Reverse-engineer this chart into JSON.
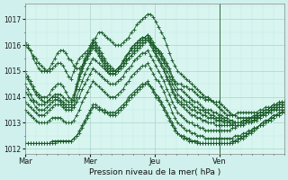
{
  "xlabel": "Pression niveau de la mer( hPa )",
  "bg_color": "#cff0ec",
  "plot_bg": "#d8f5f0",
  "grid_color_major": "#aad4cc",
  "grid_color_minor": "#c0e8e2",
  "line_color": "#1a5c28",
  "ylim": [
    1011.8,
    1017.6
  ],
  "xlim": [
    0,
    96
  ],
  "yticks": [
    1012,
    1013,
    1014,
    1015,
    1016,
    1017
  ],
  "xtick_positions": [
    0,
    24,
    48,
    72
  ],
  "xtick_labels": [
    "Mar",
    "Mer",
    "Jeu",
    "Ven"
  ],
  "vline_x": 72,
  "n_points": 96,
  "series": [
    [
      1016.0,
      1015.9,
      1015.8,
      1015.6,
      1015.5,
      1015.3,
      1015.2,
      1015.1,
      1015.0,
      1015.0,
      1015.1,
      1015.2,
      1015.3,
      1015.3,
      1015.2,
      1015.0,
      1014.8,
      1014.7,
      1015.0,
      1015.3,
      1015.5,
      1015.6,
      1015.7,
      1015.8,
      1016.0,
      1016.2,
      1016.1,
      1015.9,
      1015.7,
      1015.5,
      1015.3,
      1015.2,
      1015.1,
      1015.0,
      1015.0,
      1015.1,
      1015.2,
      1015.3,
      1015.5,
      1015.6,
      1015.7,
      1015.8,
      1015.9,
      1016.0,
      1016.1,
      1016.2,
      1016.1,
      1016.0,
      1015.9,
      1015.8,
      1015.7,
      1015.5,
      1015.3,
      1015.1,
      1014.8,
      1014.6,
      1014.5,
      1014.5,
      1014.4,
      1014.4,
      1014.3,
      1014.3,
      1014.2,
      1014.1,
      1014.0,
      1014.0,
      1013.9,
      1013.9,
      1013.9,
      1013.8,
      1013.8,
      1013.8,
      1013.7,
      1013.6,
      1013.5,
      1013.4,
      1013.3,
      1013.3,
      1013.2,
      1013.2,
      1013.2,
      1013.2,
      1013.2,
      1013.2,
      1013.2,
      1013.2,
      1013.3,
      1013.3,
      1013.3,
      1013.4,
      1013.4,
      1013.5,
      1013.5,
      1013.5,
      1013.5,
      1013.5
    ],
    [
      1015.0,
      1014.8,
      1014.6,
      1014.4,
      1014.2,
      1014.1,
      1014.0,
      1014.0,
      1014.0,
      1014.1,
      1014.3,
      1014.4,
      1014.5,
      1014.5,
      1014.4,
      1014.2,
      1014.0,
      1013.9,
      1014.1,
      1014.5,
      1014.9,
      1015.2,
      1015.5,
      1015.7,
      1015.9,
      1016.1,
      1016.0,
      1015.8,
      1015.6,
      1015.4,
      1015.2,
      1015.1,
      1015.0,
      1015.0,
      1015.1,
      1015.2,
      1015.4,
      1015.5,
      1015.7,
      1015.9,
      1016.0,
      1016.1,
      1016.2,
      1016.3,
      1016.3,
      1016.4,
      1016.3,
      1016.1,
      1015.9,
      1015.8,
      1015.6,
      1015.4,
      1015.2,
      1015.0,
      1014.7,
      1014.5,
      1014.3,
      1014.3,
      1014.2,
      1014.1,
      1014.0,
      1013.9,
      1013.8,
      1013.8,
      1013.7,
      1013.6,
      1013.5,
      1013.5,
      1013.5,
      1013.4,
      1013.4,
      1013.3,
      1013.3,
      1013.2,
      1013.2,
      1013.1,
      1013.1,
      1013.0,
      1013.0,
      1013.0,
      1013.1,
      1013.1,
      1013.1,
      1013.2,
      1013.2,
      1013.2,
      1013.3,
      1013.3,
      1013.4,
      1013.4,
      1013.5,
      1013.5,
      1013.5,
      1013.6,
      1013.6,
      1013.6
    ],
    [
      1014.8,
      1014.7,
      1014.5,
      1014.3,
      1014.1,
      1014.0,
      1013.9,
      1013.8,
      1013.8,
      1013.9,
      1014.0,
      1014.1,
      1014.1,
      1014.1,
      1014.0,
      1013.9,
      1013.8,
      1013.8,
      1014.0,
      1014.4,
      1014.8,
      1015.1,
      1015.4,
      1015.6,
      1015.8,
      1016.0,
      1015.9,
      1015.7,
      1015.5,
      1015.3,
      1015.1,
      1015.0,
      1015.0,
      1015.0,
      1015.1,
      1015.2,
      1015.4,
      1015.6,
      1015.7,
      1015.9,
      1016.0,
      1016.1,
      1016.2,
      1016.3,
      1016.3,
      1016.4,
      1016.2,
      1016.0,
      1015.8,
      1015.7,
      1015.5,
      1015.3,
      1015.0,
      1014.8,
      1014.5,
      1014.3,
      1014.1,
      1014.0,
      1013.9,
      1013.8,
      1013.8,
      1013.7,
      1013.6,
      1013.6,
      1013.5,
      1013.5,
      1013.4,
      1013.4,
      1013.3,
      1013.3,
      1013.2,
      1013.2,
      1013.2,
      1013.1,
      1013.1,
      1013.0,
      1013.0,
      1013.0,
      1013.0,
      1013.0,
      1013.0,
      1013.0,
      1013.0,
      1013.1,
      1013.1,
      1013.2,
      1013.2,
      1013.3,
      1013.4,
      1013.4,
      1013.5,
      1013.5,
      1013.6,
      1013.6,
      1013.6,
      1013.7
    ],
    [
      1014.5,
      1014.3,
      1014.1,
      1013.9,
      1013.8,
      1013.7,
      1013.7,
      1013.7,
      1013.8,
      1013.9,
      1014.0,
      1014.0,
      1014.0,
      1013.9,
      1013.8,
      1013.7,
      1013.7,
      1013.7,
      1013.9,
      1014.3,
      1014.7,
      1015.0,
      1015.3,
      1015.5,
      1015.7,
      1015.9,
      1015.8,
      1015.6,
      1015.4,
      1015.2,
      1015.0,
      1014.9,
      1014.9,
      1014.9,
      1015.0,
      1015.2,
      1015.3,
      1015.5,
      1015.7,
      1015.8,
      1015.9,
      1016.0,
      1016.1,
      1016.2,
      1016.2,
      1016.3,
      1016.1,
      1015.9,
      1015.7,
      1015.5,
      1015.3,
      1015.1,
      1014.8,
      1014.6,
      1014.3,
      1014.1,
      1013.9,
      1013.8,
      1013.7,
      1013.7,
      1013.6,
      1013.5,
      1013.5,
      1013.4,
      1013.4,
      1013.3,
      1013.3,
      1013.2,
      1013.2,
      1013.2,
      1013.1,
      1013.1,
      1013.1,
      1013.0,
      1013.0,
      1013.0,
      1012.9,
      1012.9,
      1012.9,
      1012.9,
      1012.9,
      1013.0,
      1013.0,
      1013.0,
      1013.1,
      1013.1,
      1013.2,
      1013.3,
      1013.4,
      1013.4,
      1013.5,
      1013.6,
      1013.6,
      1013.7,
      1013.7,
      1013.7
    ],
    [
      1016.1,
      1016.0,
      1015.8,
      1015.5,
      1015.3,
      1015.1,
      1015.0,
      1015.0,
      1015.0,
      1015.1,
      1015.3,
      1015.5,
      1015.7,
      1015.8,
      1015.8,
      1015.7,
      1015.5,
      1015.4,
      1015.2,
      1015.1,
      1015.1,
      1015.2,
      1015.4,
      1015.6,
      1015.8,
      1016.1,
      1016.3,
      1016.5,
      1016.5,
      1016.4,
      1016.3,
      1016.2,
      1016.1,
      1016.0,
      1016.0,
      1016.0,
      1016.1,
      1016.2,
      1016.3,
      1016.5,
      1016.6,
      1016.8,
      1016.9,
      1017.0,
      1017.1,
      1017.2,
      1017.2,
      1017.1,
      1016.9,
      1016.7,
      1016.5,
      1016.3,
      1016.0,
      1015.7,
      1015.4,
      1015.2,
      1015.0,
      1014.9,
      1014.8,
      1014.7,
      1014.6,
      1014.5,
      1014.4,
      1014.3,
      1014.2,
      1014.1,
      1014.0,
      1014.0,
      1013.9,
      1013.8,
      1013.7,
      1013.6,
      1013.5,
      1013.4,
      1013.3,
      1013.3,
      1013.3,
      1013.3,
      1013.4,
      1013.4,
      1013.4,
      1013.4,
      1013.4,
      1013.4,
      1013.4,
      1013.4,
      1013.5,
      1013.5,
      1013.6,
      1013.6,
      1013.6,
      1013.7,
      1013.7,
      1013.7,
      1013.8,
      1013.8
    ],
    [
      1013.5,
      1013.4,
      1013.3,
      1013.2,
      1013.1,
      1013.0,
      1013.0,
      1013.0,
      1013.0,
      1013.1,
      1013.2,
      1013.2,
      1013.2,
      1013.2,
      1013.1,
      1013.0,
      1013.0,
      1013.0,
      1013.1,
      1013.3,
      1013.5,
      1013.8,
      1014.0,
      1014.2,
      1014.4,
      1014.6,
      1014.5,
      1014.4,
      1014.3,
      1014.2,
      1014.1,
      1014.0,
      1014.0,
      1014.0,
      1014.1,
      1014.2,
      1014.3,
      1014.5,
      1014.6,
      1014.8,
      1014.9,
      1015.0,
      1015.1,
      1015.2,
      1015.2,
      1015.3,
      1015.1,
      1014.9,
      1014.7,
      1014.6,
      1014.4,
      1014.2,
      1013.9,
      1013.7,
      1013.4,
      1013.2,
      1013.0,
      1012.9,
      1012.8,
      1012.7,
      1012.7,
      1012.6,
      1012.6,
      1012.5,
      1012.5,
      1012.5,
      1012.4,
      1012.4,
      1012.4,
      1012.4,
      1012.4,
      1012.4,
      1012.4,
      1012.4,
      1012.4,
      1012.4,
      1012.4,
      1012.5,
      1012.5,
      1012.5,
      1012.6,
      1012.6,
      1012.7,
      1012.7,
      1012.8,
      1012.8,
      1012.9,
      1013.0,
      1013.1,
      1013.1,
      1013.2,
      1013.3,
      1013.3,
      1013.4,
      1013.4,
      1013.5
    ],
    [
      1012.2,
      1012.2,
      1012.2,
      1012.2,
      1012.2,
      1012.2,
      1012.2,
      1012.2,
      1012.2,
      1012.2,
      1012.3,
      1012.3,
      1012.3,
      1012.3,
      1012.3,
      1012.3,
      1012.3,
      1012.3,
      1012.4,
      1012.5,
      1012.7,
      1012.9,
      1013.1,
      1013.3,
      1013.5,
      1013.7,
      1013.7,
      1013.6,
      1013.5,
      1013.5,
      1013.4,
      1013.4,
      1013.4,
      1013.4,
      1013.5,
      1013.6,
      1013.7,
      1013.8,
      1014.0,
      1014.1,
      1014.2,
      1014.3,
      1014.4,
      1014.5,
      1014.5,
      1014.6,
      1014.4,
      1014.3,
      1014.1,
      1014.0,
      1013.8,
      1013.6,
      1013.4,
      1013.2,
      1013.0,
      1012.8,
      1012.6,
      1012.5,
      1012.5,
      1012.4,
      1012.4,
      1012.3,
      1012.3,
      1012.3,
      1012.2,
      1012.2,
      1012.2,
      1012.2,
      1012.2,
      1012.2,
      1012.2,
      1012.2,
      1012.2,
      1012.2,
      1012.2,
      1012.2,
      1012.3,
      1012.3,
      1012.4,
      1012.4,
      1012.5,
      1012.5,
      1012.6,
      1012.7,
      1012.8,
      1012.8,
      1012.9,
      1013.0,
      1013.0,
      1013.1,
      1013.2,
      1013.2,
      1013.3,
      1013.3,
      1013.4,
      1013.4
    ],
    [
      1012.2,
      1012.2,
      1012.2,
      1012.2,
      1012.2,
      1012.2,
      1012.2,
      1012.2,
      1012.2,
      1012.2,
      1012.2,
      1012.2,
      1012.3,
      1012.3,
      1012.3,
      1012.3,
      1012.3,
      1012.3,
      1012.4,
      1012.5,
      1012.6,
      1012.8,
      1013.0,
      1013.2,
      1013.4,
      1013.6,
      1013.6,
      1013.5,
      1013.5,
      1013.4,
      1013.4,
      1013.3,
      1013.3,
      1013.3,
      1013.4,
      1013.5,
      1013.6,
      1013.7,
      1013.9,
      1014.0,
      1014.1,
      1014.2,
      1014.3,
      1014.4,
      1014.5,
      1014.5,
      1014.4,
      1014.2,
      1014.0,
      1013.9,
      1013.7,
      1013.5,
      1013.3,
      1013.1,
      1012.9,
      1012.7,
      1012.6,
      1012.5,
      1012.4,
      1012.4,
      1012.3,
      1012.3,
      1012.3,
      1012.2,
      1012.2,
      1012.2,
      1012.2,
      1012.2,
      1012.2,
      1012.2,
      1012.2,
      1012.2,
      1012.2,
      1012.2,
      1012.2,
      1012.2,
      1012.2,
      1012.3,
      1012.3,
      1012.4,
      1012.4,
      1012.5,
      1012.6,
      1012.6,
      1012.7,
      1012.8,
      1012.9,
      1012.9,
      1013.0,
      1013.1,
      1013.1,
      1013.2,
      1013.3,
      1013.3,
      1013.4,
      1013.4
    ],
    [
      1013.8,
      1013.7,
      1013.6,
      1013.5,
      1013.4,
      1013.3,
      1013.3,
      1013.3,
      1013.4,
      1013.5,
      1013.6,
      1013.7,
      1013.7,
      1013.7,
      1013.6,
      1013.5,
      1013.5,
      1013.5,
      1013.6,
      1013.8,
      1014.0,
      1014.3,
      1014.5,
      1014.7,
      1014.9,
      1015.1,
      1015.0,
      1014.9,
      1014.8,
      1014.7,
      1014.6,
      1014.5,
      1014.5,
      1014.5,
      1014.6,
      1014.7,
      1014.8,
      1015.0,
      1015.1,
      1015.2,
      1015.4,
      1015.5,
      1015.6,
      1015.7,
      1015.7,
      1015.8,
      1015.6,
      1015.4,
      1015.2,
      1015.0,
      1014.8,
      1014.6,
      1014.3,
      1014.1,
      1013.8,
      1013.6,
      1013.4,
      1013.3,
      1013.2,
      1013.1,
      1013.0,
      1013.0,
      1012.9,
      1012.9,
      1012.8,
      1012.8,
      1012.7,
      1012.7,
      1012.7,
      1012.7,
      1012.7,
      1012.7,
      1012.7,
      1012.7,
      1012.7,
      1012.7,
      1012.8,
      1012.8,
      1012.9,
      1012.9,
      1013.0,
      1013.0,
      1013.1,
      1013.2,
      1013.2,
      1013.3,
      1013.4,
      1013.4,
      1013.5,
      1013.5,
      1013.6,
      1013.6,
      1013.7,
      1013.7,
      1013.7,
      1013.8
    ],
    [
      1014.2,
      1014.1,
      1013.9,
      1013.8,
      1013.6,
      1013.5,
      1013.5,
      1013.5,
      1013.6,
      1013.7,
      1013.8,
      1013.9,
      1013.9,
      1013.8,
      1013.7,
      1013.6,
      1013.6,
      1013.6,
      1013.7,
      1014.0,
      1014.3,
      1014.6,
      1014.9,
      1015.1,
      1015.3,
      1015.5,
      1015.4,
      1015.3,
      1015.2,
      1015.1,
      1015.0,
      1014.9,
      1014.9,
      1014.9,
      1015.0,
      1015.1,
      1015.2,
      1015.4,
      1015.5,
      1015.6,
      1015.8,
      1015.9,
      1016.0,
      1016.1,
      1016.2,
      1016.2,
      1016.0,
      1015.8,
      1015.6,
      1015.4,
      1015.2,
      1015.0,
      1014.7,
      1014.5,
      1014.2,
      1014.0,
      1013.8,
      1013.7,
      1013.6,
      1013.5,
      1013.4,
      1013.3,
      1013.3,
      1013.2,
      1013.2,
      1013.1,
      1013.1,
      1013.0,
      1013.0,
      1013.0,
      1012.9,
      1012.9,
      1012.9,
      1012.9,
      1012.9,
      1012.9,
      1012.9,
      1013.0,
      1013.0,
      1013.0,
      1013.1,
      1013.1,
      1013.2,
      1013.2,
      1013.3,
      1013.3,
      1013.4,
      1013.4,
      1013.5,
      1013.5,
      1013.6,
      1013.7,
      1013.7,
      1013.8,
      1013.8,
      1013.8
    ]
  ]
}
